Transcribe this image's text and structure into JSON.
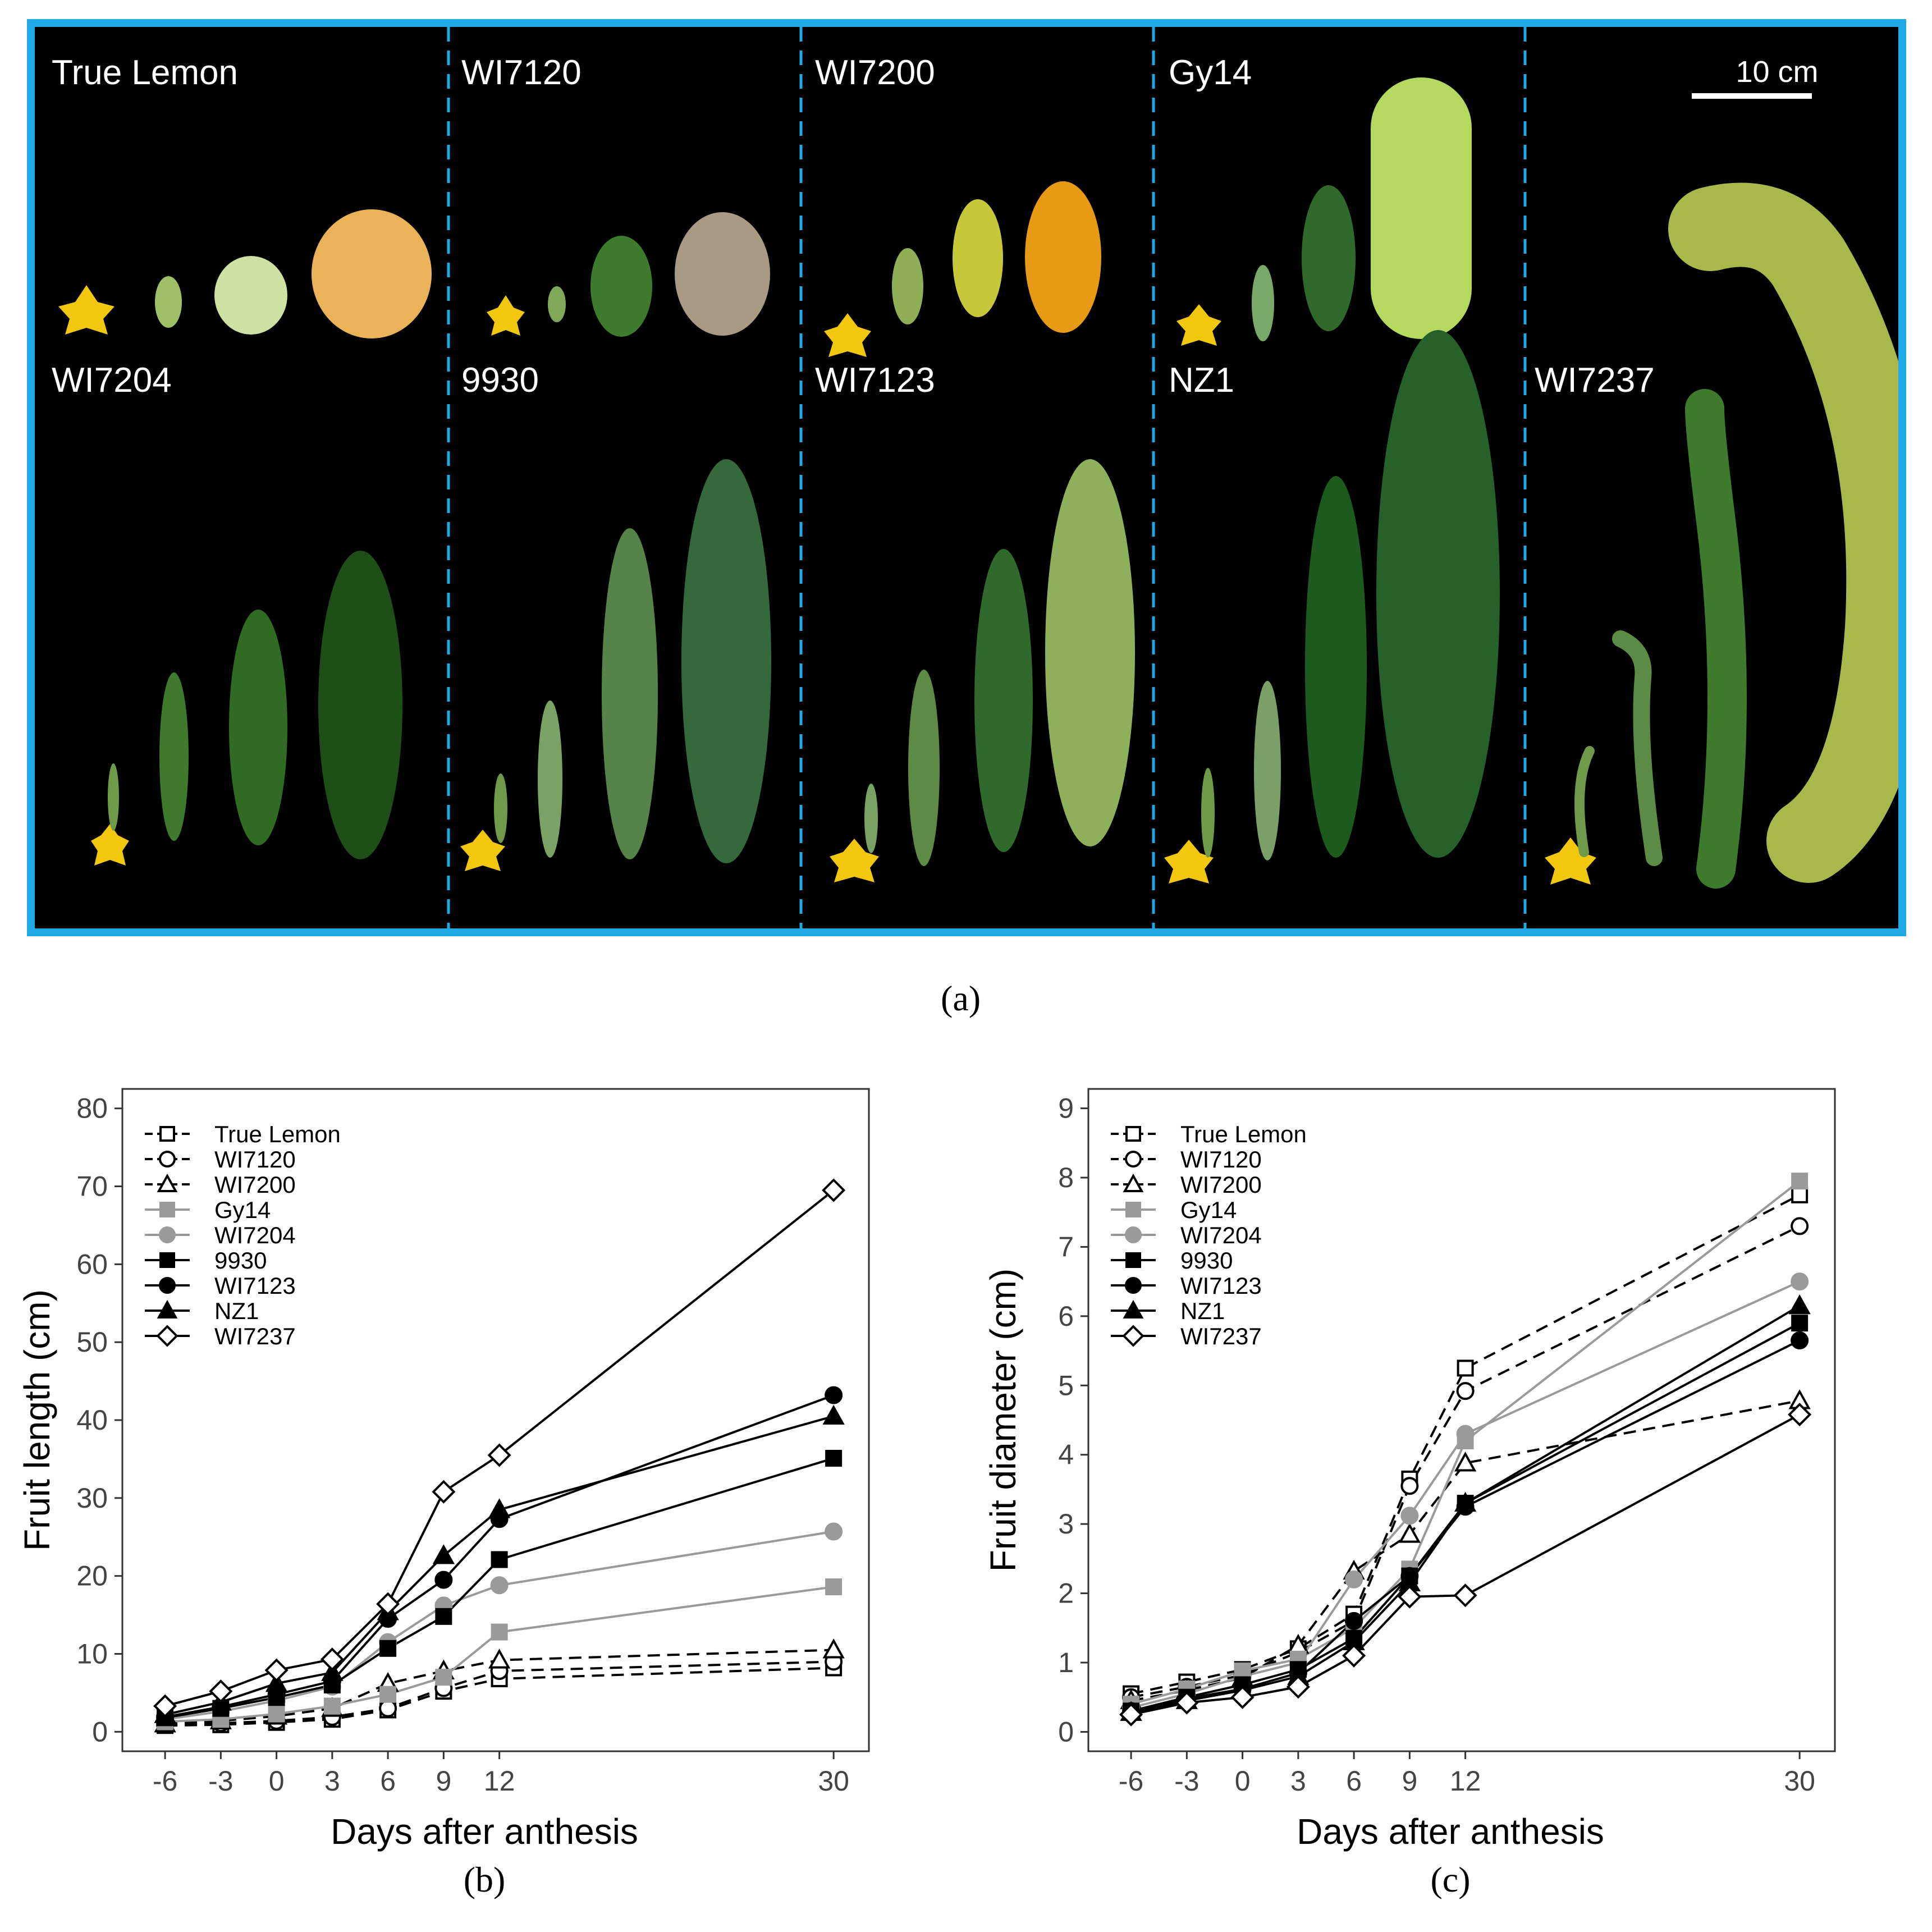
{
  "panel_a": {
    "caption": "(a)",
    "scale_bar_label": "10 cm",
    "columns": [
      {
        "top": "True Lemon",
        "bottom": "WI7204"
      },
      {
        "top": "WI7120",
        "bottom": "9930"
      },
      {
        "top": "WI7200",
        "bottom": "WI7123"
      },
      {
        "top": "Gy14",
        "bottom": "NZ1"
      },
      {
        "top": "",
        "bottom": "WI7237"
      }
    ],
    "colors": {
      "background": "#000000",
      "border": "#1fa9e6",
      "divider": "#1fa9e6"
    }
  },
  "chart_data": [
    {
      "type": "line",
      "caption": "(b)",
      "xlabel": "Days after anthesis",
      "ylabel": "Fruit length (cm)",
      "x": [
        -6,
        -3,
        0,
        3,
        6,
        9,
        12,
        30
      ],
      "x_ticks": [
        "-6",
        "-3",
        "0",
        "3",
        "6",
        "9",
        "12",
        "30"
      ],
      "ylim": [
        -2.5,
        82.5
      ],
      "y_ticks": [
        "0",
        "10",
        "20",
        "30",
        "40",
        "50",
        "60",
        "70",
        "80"
      ],
      "legend": "top-left",
      "series": [
        {
          "name": "True Lemon",
          "marker": "square-open",
          "color": "#000000",
          "dash": true,
          "values": [
            0.8,
            0.9,
            1.2,
            1.6,
            2.8,
            5.2,
            6.8,
            8.2
          ]
        },
        {
          "name": "WI7120",
          "marker": "circle-open",
          "color": "#000000",
          "dash": true,
          "values": [
            0.9,
            1.1,
            1.4,
            1.9,
            3.0,
            5.6,
            7.8,
            9.0
          ]
        },
        {
          "name": "WI7200",
          "marker": "triangle-open",
          "color": "#000000",
          "dash": true,
          "values": [
            1.0,
            1.4,
            2.0,
            3.0,
            6.2,
            7.8,
            9.2,
            10.5
          ]
        },
        {
          "name": "Gy14",
          "marker": "square-filled",
          "color": "#9a9a9a",
          "dash": false,
          "values": [
            1.3,
            1.6,
            2.3,
            3.3,
            4.8,
            7.0,
            12.8,
            18.6
          ]
        },
        {
          "name": "WI7204",
          "marker": "circle-filled",
          "color": "#9a9a9a",
          "dash": false,
          "values": [
            1.6,
            2.6,
            4.0,
            5.8,
            11.5,
            16.2,
            18.8,
            25.7
          ]
        },
        {
          "name": "9930",
          "marker": "square-filled",
          "color": "#000000",
          "dash": false,
          "values": [
            1.8,
            3.0,
            4.4,
            6.0,
            10.7,
            14.8,
            22.1,
            35.1
          ]
        },
        {
          "name": "WI7123",
          "marker": "circle-filled",
          "color": "#000000",
          "dash": false,
          "values": [
            1.9,
            3.2,
            4.8,
            6.5,
            14.5,
            19.5,
            27.3,
            43.2
          ]
        },
        {
          "name": "NZ1",
          "marker": "triangle-filled",
          "color": "#000000",
          "dash": false,
          "values": [
            2.2,
            3.8,
            6.2,
            7.6,
            15.4,
            22.6,
            28.5,
            40.5
          ]
        },
        {
          "name": "WI7237",
          "marker": "diamond-open",
          "color": "#000000",
          "dash": false,
          "values": [
            3.3,
            5.2,
            7.9,
            9.3,
            16.4,
            30.8,
            35.5,
            69.5
          ]
        }
      ]
    },
    {
      "type": "line",
      "caption": "(c)",
      "xlabel": "Days after anthesis",
      "ylabel": "Fruit diameter (cm)",
      "x": [
        -6,
        -3,
        0,
        3,
        6,
        9,
        12,
        30
      ],
      "x_ticks": [
        "-6",
        "-3",
        "0",
        "3",
        "6",
        "9",
        "12",
        "30"
      ],
      "ylim": [
        -0.28,
        9.28
      ],
      "y_ticks": [
        "0",
        "1",
        "2",
        "3",
        "4",
        "5",
        "6",
        "7",
        "8",
        "9"
      ],
      "legend": "top-left",
      "series": [
        {
          "name": "True Lemon",
          "marker": "square-open",
          "color": "#000000",
          "dash": true,
          "values": [
            0.55,
            0.72,
            0.9,
            1.2,
            1.7,
            3.65,
            5.25,
            7.75
          ]
        },
        {
          "name": "WI7120",
          "marker": "circle-open",
          "color": "#000000",
          "dash": true,
          "values": [
            0.5,
            0.65,
            0.82,
            1.15,
            1.6,
            3.55,
            4.92,
            7.3
          ]
        },
        {
          "name": "WI7200",
          "marker": "triangle-open",
          "color": "#000000",
          "dash": true,
          "values": [
            0.45,
            0.6,
            0.78,
            1.25,
            2.32,
            2.85,
            3.88,
            4.78
          ]
        },
        {
          "name": "Gy14",
          "marker": "square-filled",
          "color": "#9a9a9a",
          "dash": false,
          "values": [
            0.4,
            0.62,
            0.88,
            1.05,
            1.5,
            2.35,
            4.2,
            7.95
          ]
        },
        {
          "name": "WI7204",
          "marker": "circle-filled",
          "color": "#9a9a9a",
          "dash": false,
          "values": [
            0.35,
            0.55,
            0.8,
            1.0,
            2.2,
            3.12,
            4.3,
            6.5
          ]
        },
        {
          "name": "9930",
          "marker": "square-filled",
          "color": "#000000",
          "dash": false,
          "values": [
            0.3,
            0.5,
            0.68,
            0.9,
            1.35,
            2.25,
            3.3,
            5.9
          ]
        },
        {
          "name": "WI7123",
          "marker": "circle-filled",
          "color": "#000000",
          "dash": false,
          "values": [
            0.3,
            0.48,
            0.62,
            0.85,
            1.6,
            2.25,
            3.25,
            5.65
          ]
        },
        {
          "name": "NZ1",
          "marker": "triangle-filled",
          "color": "#000000",
          "dash": false,
          "values": [
            0.28,
            0.45,
            0.6,
            0.8,
            1.3,
            2.15,
            3.3,
            6.15
          ]
        },
        {
          "name": "WI7237",
          "marker": "diamond-open",
          "color": "#000000",
          "dash": false,
          "values": [
            0.25,
            0.42,
            0.5,
            0.65,
            1.1,
            1.95,
            1.97,
            4.58
          ]
        }
      ]
    }
  ]
}
